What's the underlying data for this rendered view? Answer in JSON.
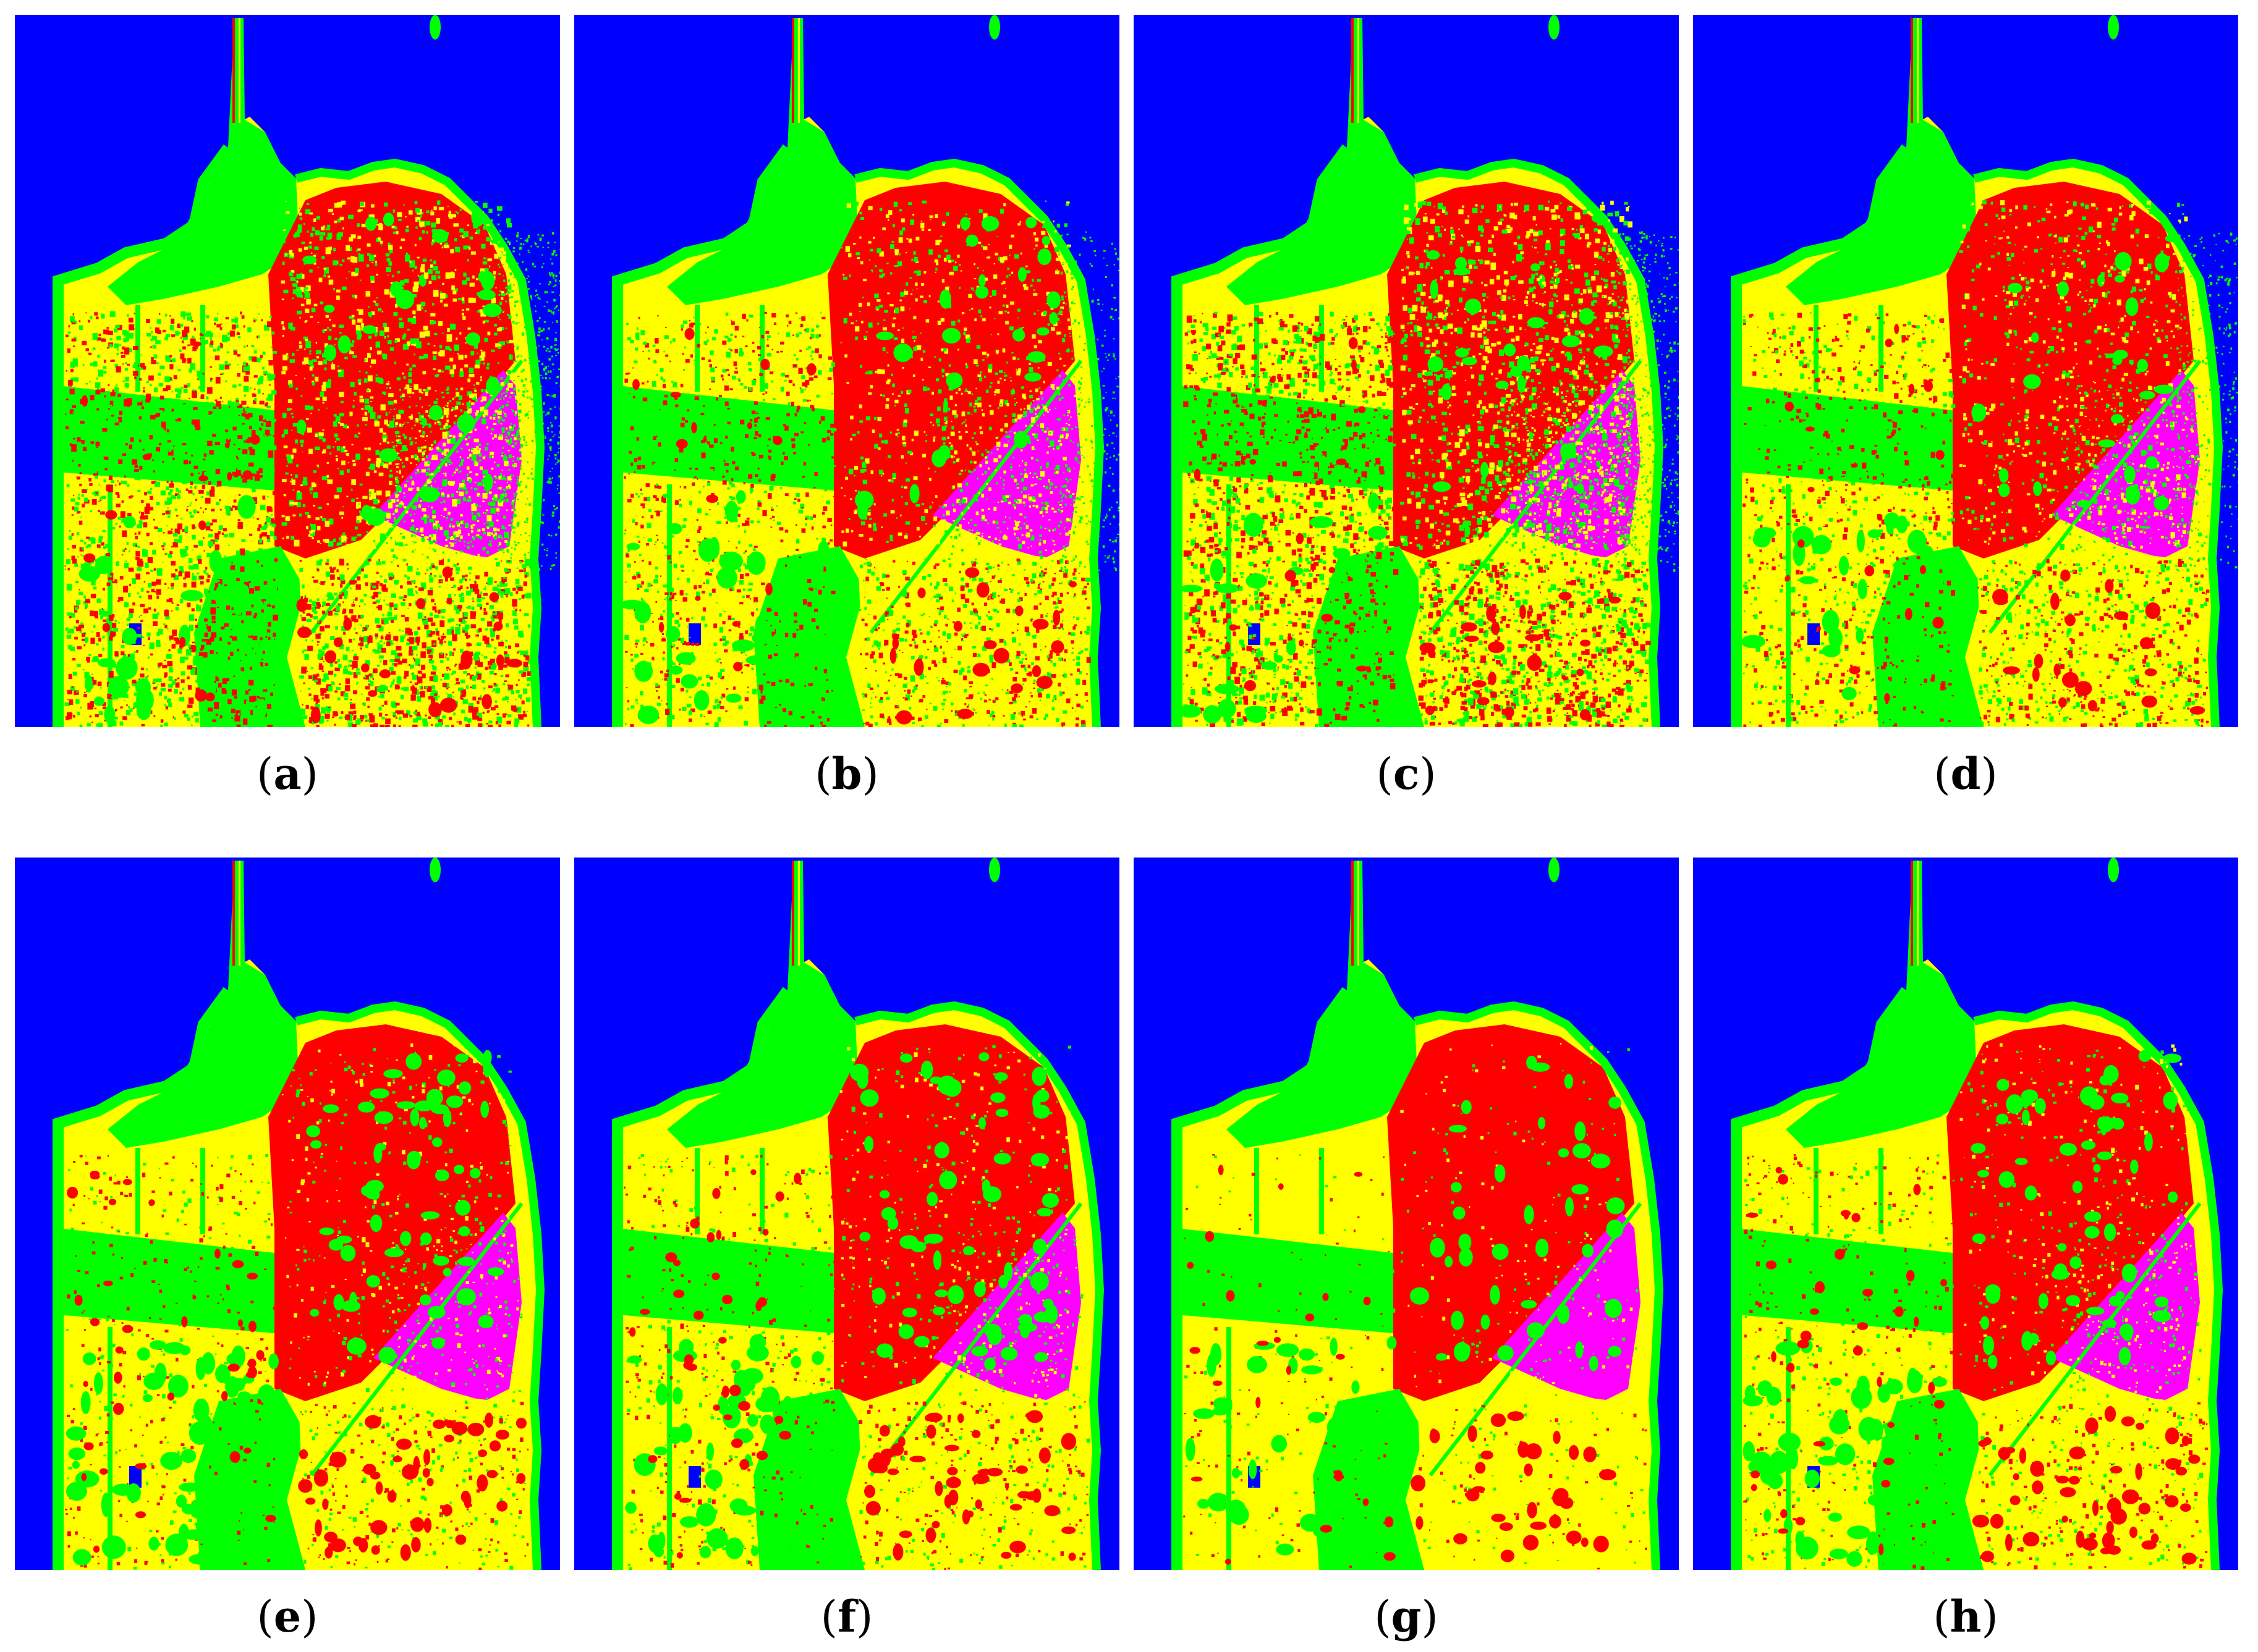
{
  "classes": {
    "water": "#0000ff",
    "vegetation": "#00ff00",
    "low_density": "#ffff00",
    "high_density": "#ff0000",
    "developed": "#ff00ff"
  },
  "panels": [
    {
      "id": "a",
      "noise": "high",
      "caption": {
        "open": "(",
        "letter": "a",
        "close": ")"
      }
    },
    {
      "id": "b",
      "noise": "medium",
      "caption": {
        "open": "(",
        "letter": "b",
        "close": ")"
      }
    },
    {
      "id": "c",
      "noise": "high",
      "caption": {
        "open": "(",
        "letter": "c",
        "close": ")"
      }
    },
    {
      "id": "d",
      "noise": "medium",
      "caption": {
        "open": "(",
        "letter": "d",
        "close": ")"
      }
    },
    {
      "id": "e",
      "noise": "low",
      "caption": {
        "open": "(",
        "letter": "e",
        "close": ")"
      }
    },
    {
      "id": "f",
      "noise": "low",
      "caption": {
        "open": "(",
        "letter": "f",
        "close": ")"
      }
    },
    {
      "id": "g",
      "noise": "none",
      "caption": {
        "open": "(",
        "letter": "g",
        "close": ")"
      }
    },
    {
      "id": "h",
      "noise": "low",
      "caption": {
        "open": "(",
        "letter": "h",
        "close": ")"
      }
    }
  ]
}
